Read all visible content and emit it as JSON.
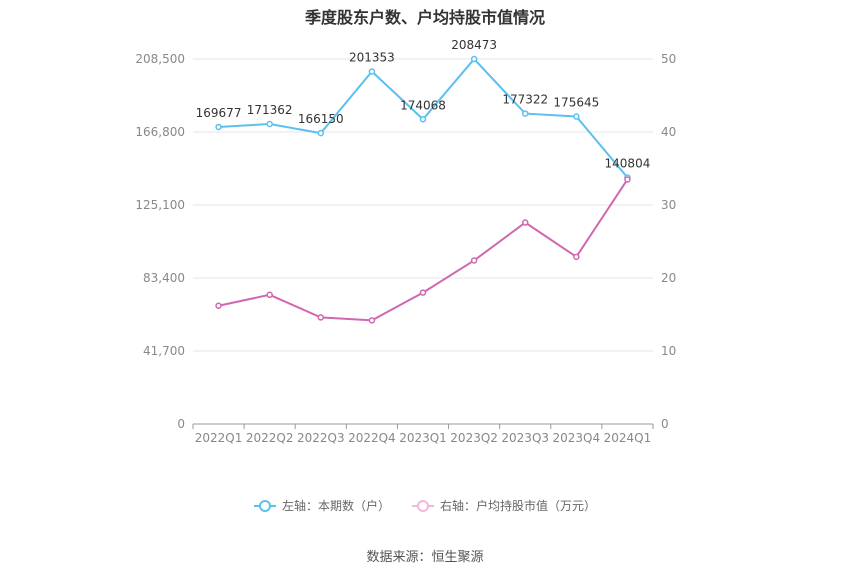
{
  "title": "季度股东户数、户均持股市值情况",
  "source": "数据来源：恒生聚源",
  "colors": {
    "left_series": "#5bc0f0",
    "right_series": "#d067b0",
    "grid": "#e6e6e6",
    "axis": "#999999"
  },
  "chart_data": {
    "type": "line",
    "title": "季度股东户数、户均持股市值情况",
    "categories": [
      "2022Q1",
      "2022Q2",
      "2022Q3",
      "2022Q4",
      "2023Q1",
      "2023Q2",
      "2023Q3",
      "2023Q4",
      "2024Q1"
    ],
    "y_left": {
      "ylim": [
        0,
        208500
      ],
      "ticks": [
        "0",
        "41,700",
        "83,400",
        "125,100",
        "166,800",
        "208,500"
      ],
      "tick_values": [
        0,
        41700,
        83400,
        125100,
        166800,
        208500
      ]
    },
    "y_right": {
      "ylim": [
        0,
        50
      ],
      "ticks": [
        "0",
        "10",
        "20",
        "30",
        "40",
        "50"
      ],
      "tick_values": [
        0,
        10,
        20,
        30,
        40,
        50
      ]
    },
    "series": [
      {
        "name": "左轴：本期数（户）",
        "axis": "left",
        "color": "#5bc0f0",
        "values": [
          169677,
          171362,
          166150,
          201353,
          174068,
          208473,
          177322,
          175645,
          140804
        ],
        "labels": [
          "169677",
          "171362",
          "166150",
          "201353",
          "174068",
          "208473",
          "177322",
          "175645",
          "140804"
        ]
      },
      {
        "name": "右轴：户均持股市值（万元）",
        "axis": "right",
        "color": "#d067b0",
        "values": [
          16.2,
          17.7,
          14.6,
          14.2,
          18.0,
          22.4,
          27.6,
          22.9,
          33.5
        ]
      }
    ],
    "grid": true,
    "legend": "bottom-center"
  }
}
